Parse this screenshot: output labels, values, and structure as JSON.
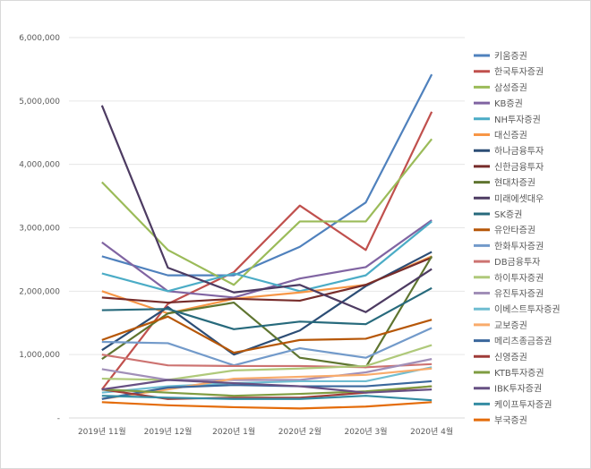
{
  "chart_data": {
    "type": "line",
    "title": "",
    "xlabel": "",
    "ylabel": "",
    "ylim": [
      0,
      6000000
    ],
    "yticks": [
      "-",
      "1,000,000",
      "2,000,000",
      "3,000,000",
      "4,000,000",
      "5,000,000",
      "6,000,000"
    ],
    "ytick_values": [
      0,
      1000000,
      2000000,
      3000000,
      4000000,
      5000000,
      6000000
    ],
    "grid": true,
    "legend_position": "right",
    "categories": [
      "2019년 11월",
      "2019년 12월",
      "2020년 1월",
      "2020년 2월",
      "2020년 3월",
      "2020년 4월"
    ],
    "series": [
      {
        "name": "키움증권",
        "color": "#4f81bd",
        "values": [
          2550000,
          2250000,
          2250000,
          2700000,
          3400000,
          5420000
        ]
      },
      {
        "name": "한국투자증권",
        "color": "#c0504d",
        "values": [
          450000,
          1800000,
          2300000,
          3350000,
          2650000,
          4830000
        ]
      },
      {
        "name": "삼성증권",
        "color": "#9bbb59",
        "values": [
          3720000,
          2650000,
          2100000,
          3100000,
          3100000,
          4400000
        ]
      },
      {
        "name": "KB증권",
        "color": "#8064a2",
        "values": [
          2770000,
          2000000,
          1900000,
          2200000,
          2380000,
          3120000
        ]
      },
      {
        "name": "NH투자증권",
        "color": "#4bacc6",
        "values": [
          2280000,
          2000000,
          2280000,
          2000000,
          2250000,
          3100000
        ]
      },
      {
        "name": "대신증권",
        "color": "#f79646",
        "values": [
          2000000,
          1650000,
          1880000,
          1980000,
          2100000,
          2550000
        ]
      },
      {
        "name": "하나금융투자",
        "color": "#2c4d75",
        "values": [
          1070000,
          1750000,
          1000000,
          1380000,
          2080000,
          2620000
        ]
      },
      {
        "name": "신한금융투자",
        "color": "#772c2a",
        "values": [
          1900000,
          1820000,
          1880000,
          1850000,
          2100000,
          2530000
        ]
      },
      {
        "name": "현대차증권",
        "color": "#5f7530",
        "values": [
          930000,
          1650000,
          1820000,
          950000,
          800000,
          2550000
        ]
      },
      {
        "name": "미래에셋대우",
        "color": "#4d3b62",
        "values": [
          4930000,
          2370000,
          1980000,
          2100000,
          1670000,
          2350000
        ]
      },
      {
        "name": "SK증권",
        "color": "#276a7c",
        "values": [
          1700000,
          1720000,
          1400000,
          1520000,
          1480000,
          2050000
        ]
      },
      {
        "name": "유안타증권",
        "color": "#b65708",
        "values": [
          1230000,
          1600000,
          1030000,
          1230000,
          1250000,
          1550000
        ]
      },
      {
        "name": "한화투자증권",
        "color": "#729aca",
        "values": [
          1200000,
          1180000,
          830000,
          1100000,
          950000,
          1420000
        ]
      },
      {
        "name": "DB금융투자",
        "color": "#cd7371",
        "values": [
          1000000,
          830000,
          820000,
          820000,
          800000,
          850000
        ]
      },
      {
        "name": "하이투자증권",
        "color": "#afc97a",
        "values": [
          620000,
          600000,
          750000,
          780000,
          820000,
          1150000
        ]
      },
      {
        "name": "유진투자증권",
        "color": "#a18fb8",
        "values": [
          770000,
          600000,
          600000,
          600000,
          720000,
          930000
        ]
      },
      {
        "name": "이베스트투자증권",
        "color": "#6fbdd1",
        "values": [
          400000,
          500000,
          550000,
          580000,
          580000,
          800000
        ]
      },
      {
        "name": "교보증권",
        "color": "#f9ab6b",
        "values": [
          300000,
          450000,
          620000,
          650000,
          680000,
          780000
        ]
      },
      {
        "name": "메리츠종금증권",
        "color": "#3a679c",
        "values": [
          300000,
          480000,
          520000,
          500000,
          500000,
          580000
        ]
      },
      {
        "name": "신영증권",
        "color": "#9f3b38",
        "values": [
          450000,
          300000,
          320000,
          320000,
          400000,
          500000
        ]
      },
      {
        "name": "KTB투자증권",
        "color": "#7f9c41",
        "values": [
          450000,
          400000,
          350000,
          380000,
          420000,
          500000
        ]
      },
      {
        "name": "IBK투자증권",
        "color": "#675083",
        "values": [
          450000,
          600000,
          550000,
          500000,
          400000,
          450000
        ]
      },
      {
        "name": "케이프투자증권",
        "color": "#358ca3",
        "values": [
          350000,
          320000,
          300000,
          300000,
          350000,
          280000
        ]
      },
      {
        "name": "부국증권",
        "color": "#e46c0a",
        "values": [
          250000,
          200000,
          170000,
          150000,
          180000,
          250000
        ]
      }
    ]
  }
}
